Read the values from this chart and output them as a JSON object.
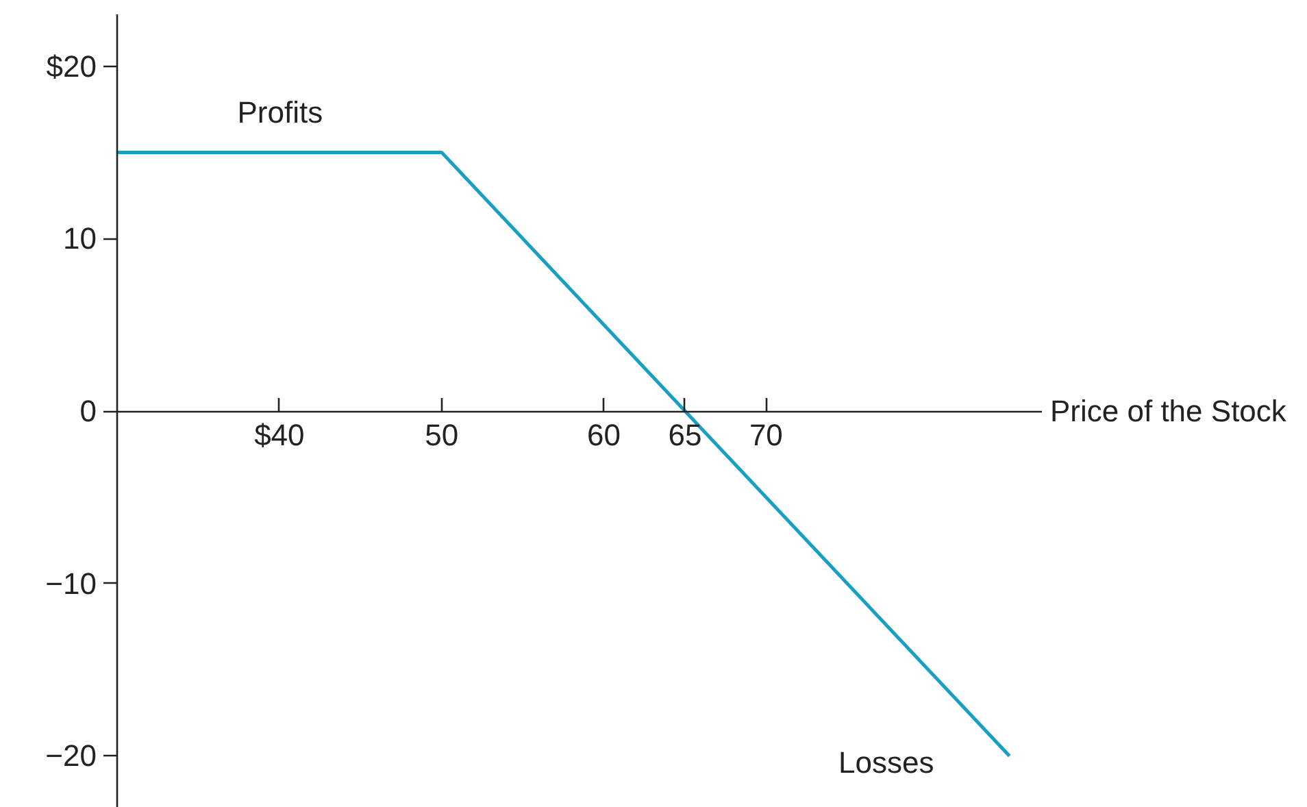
{
  "chart_data": {
    "type": "line",
    "xlabel": "Price of the Stock",
    "x": [
      30,
      50,
      85
    ],
    "series": [
      {
        "color": "#1a9fc4",
        "values": [
          15,
          15,
          -20
        ]
      }
    ],
    "xlim": [
      30,
      87
    ],
    "xticks": [
      {
        "value": 40,
        "label": "$40"
      },
      50,
      60,
      65,
      70
    ],
    "ylim": [
      -23,
      23
    ],
    "yticks": [
      {
        "value": 20,
        "label": "$20"
      },
      10,
      0,
      {
        "value": -10,
        "label": "−10"
      },
      {
        "value": -20,
        "label": "−20"
      }
    ],
    "annotations": [
      "Profits",
      "Losses"
    ],
    "grid": false,
    "marker": "none",
    "line_style": "solid"
  }
}
